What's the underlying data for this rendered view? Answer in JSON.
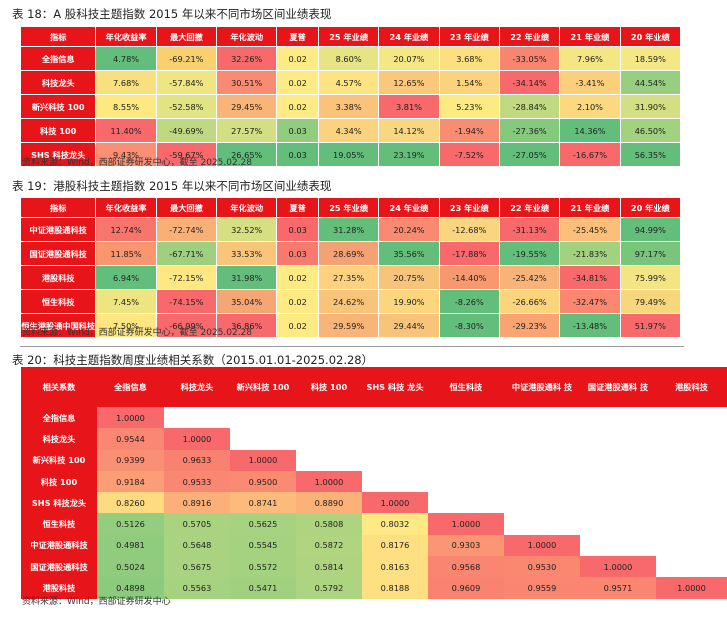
{
  "t18": {
    "title": "表 18：A 股科技主题指数 2015 年以来不同市场区间业绩表现",
    "headers": [
      "指标",
      "年化收益率",
      "最大回撤",
      "年化波动",
      "夏普",
      "25 年业绩",
      "24 年业绩",
      "23 年业绩",
      "22 年业绩",
      "21 年业绩",
      "20 年业绩"
    ],
    "rows": [
      {
        "label": "全指信息",
        "cells": [
          "4.78%",
          "-69.21%",
          "32.26%",
          "0.02",
          "8.60%",
          "20.07%",
          "3.68%",
          "-33.05%",
          "7.96%",
          "18.59%"
        ]
      },
      {
        "label": "科技龙头",
        "cells": [
          "7.68%",
          "-57.84%",
          "30.51%",
          "0.02",
          "4.57%",
          "12.65%",
          "1.54%",
          "-34.14%",
          "-3.41%",
          "44.54%"
        ]
      },
      {
        "label": "新兴科技 100",
        "cells": [
          "8.55%",
          "-52.58%",
          "29.45%",
          "0.02",
          "3.38%",
          "3.81%",
          "5.23%",
          "-28.84%",
          "2.10%",
          "31.90%"
        ]
      },
      {
        "label": "科技 100",
        "cells": [
          "11.40%",
          "-49.69%",
          "27.57%",
          "0.03",
          "4.34%",
          "14.12%",
          "-1.94%",
          "-27.36%",
          "14.36%",
          "46.50%"
        ]
      },
      {
        "label": "SHS 科技龙头",
        "cells": [
          "9.43%",
          "-59.67%",
          "26.65%",
          "0.03",
          "19.05%",
          "23.19%",
          "-7.52%",
          "-27.05%",
          "-16.67%",
          "56.35%"
        ]
      }
    ],
    "colors": [
      [
        "#63be7b",
        "#f8d16e",
        "#f8696b",
        "#ffeb84",
        "#e6e483",
        "#f4e784",
        "#fddf80",
        "#f98570",
        "#f4e783",
        "#f5e884"
      ],
      [
        "#f8df7f",
        "#eee583",
        "#f98b72",
        "#ffeb84",
        "#fde381",
        "#f9c87a",
        "#fcd37d",
        "#f8696b",
        "#fbcf7c",
        "#98ce7f"
      ],
      [
        "#fde980",
        "#e2e383",
        "#f9b578",
        "#ffeb84",
        "#fbc37a",
        "#f8696b",
        "#feea83",
        "#c0da81",
        "#fcd97f",
        "#d3df82"
      ],
      [
        "#f8696b",
        "#bed981",
        "#d2df82",
        "#92cc7e",
        "#fcd27e",
        "#f8d780",
        "#f98d72",
        "#85c97d",
        "#63be7b",
        "#a2d17f"
      ],
      [
        "#fa8f73",
        "#f8696b",
        "#63be7b",
        "#63be7b",
        "#63be7b",
        "#63be7b",
        "#f8696b",
        "#63be7b",
        "#f8696b",
        "#63be7b"
      ]
    ],
    "source": "资料来源：Wind，西部证券研发中心，截至 2025.02.28"
  },
  "t19": {
    "title": "表 19：港股科技主题指数 2015 年以来不同市场区间业绩表现",
    "headers": [
      "指标",
      "年化收益率",
      "最大回撤",
      "年化波动",
      "夏普",
      "25 年业绩",
      "24 年业绩",
      "23 年业绩",
      "22 年业绩",
      "21 年业绩",
      "20 年业绩"
    ],
    "rows": [
      {
        "label": "中证港股通科技",
        "cells": [
          "12.74%",
          "-72.74%",
          "32.52%",
          "0.03",
          "31.28%",
          "20.24%",
          "-12.68%",
          "-31.13%",
          "-25.45%",
          "94.99%"
        ]
      },
      {
        "label": "国证港股通科技",
        "cells": [
          "11.85%",
          "-67.71%",
          "33.53%",
          "0.03",
          "28.69%",
          "35.56%",
          "-17.88%",
          "-19.55%",
          "-21.83%",
          "97.17%"
        ]
      },
      {
        "label": "港股科技",
        "cells": [
          "6.94%",
          "-72.15%",
          "31.98%",
          "0.02",
          "27.35%",
          "20.75%",
          "-14.40%",
          "-25.42%",
          "-34.81%",
          "75.99%"
        ]
      },
      {
        "label": "恒生科技",
        "cells": [
          "7.45%",
          "-74.15%",
          "35.04%",
          "0.02",
          "24.62%",
          "19.90%",
          "-8.26%",
          "-26.66%",
          "-32.47%",
          "79.49%"
        ]
      },
      {
        "label": "恒生港股通中国科技",
        "cells": [
          "7.50%",
          "-66.99%",
          "36.86%",
          "0.02",
          "29.59%",
          "29.44%",
          "-8.30%",
          "-29.23%",
          "-13.48%",
          "51.97%"
        ]
      }
    ],
    "colors": [
      [
        "#f8756d",
        "#f9b077",
        "#d6e082",
        "#f8696b",
        "#63be7b",
        "#f88a71",
        "#f8d57e",
        "#f8696b",
        "#fbbf79",
        "#63be7b"
      ],
      [
        "#f89670",
        "#9fd07f",
        "#f8c57a",
        "#f87a6e",
        "#f4a173",
        "#63be7b",
        "#f8696b",
        "#63be7b",
        "#a3d17f",
        "#79c57c"
      ],
      [
        "#63be7b",
        "#ffe883",
        "#63be7b",
        "#ffeb84",
        "#fdd17d",
        "#f8c47a",
        "#f8986f",
        "#f8b478",
        "#f8696b",
        "#f3e583"
      ],
      [
        "#ece582",
        "#f8696b",
        "#f5a675",
        "#ffeb84",
        "#f8c47a",
        "#fbd67f",
        "#63be7b",
        "#fcd47c",
        "#fa876f",
        "#f8d67c"
      ],
      [
        "#fee683",
        "#f8696b",
        "#f8696b",
        "#ffeb84",
        "#f9b577",
        "#f8c47a",
        "#63be7b",
        "#faa474",
        "#63be7b",
        "#f8696b"
      ]
    ],
    "source": "资料来源：Wind，西部证券研发中心，截至 2025.02.28"
  },
  "t20": {
    "title": "表 20：科技主题指数周度业绩相关系数（2015.01.01-2025.02.28）",
    "headers": [
      "相关系数",
      "全指信息",
      "科技龙头",
      "新兴科技 100",
      "科技 100",
      "SHS 科技 龙头",
      "恒生科技",
      "中证港股通科 技",
      "国证港股通科 技",
      "港股科技"
    ],
    "rows": [
      {
        "label": "全指信息",
        "cells": [
          "1.0000"
        ]
      },
      {
        "label": "科技龙头",
        "cells": [
          "0.9544",
          "1.0000"
        ]
      },
      {
        "label": "新兴科技 100",
        "cells": [
          "0.9399",
          "0.9633",
          "1.0000"
        ]
      },
      {
        "label": "科技 100",
        "cells": [
          "0.9184",
          "0.9533",
          "0.9500",
          "1.0000"
        ]
      },
      {
        "label": "SHS 科技龙头",
        "cells": [
          "0.8260",
          "0.8916",
          "0.8741",
          "0.8890",
          "1.0000"
        ]
      },
      {
        "label": "恒生科技",
        "cells": [
          "0.5126",
          "0.5705",
          "0.5625",
          "0.5808",
          "0.8032",
          "1.0000"
        ]
      },
      {
        "label": "中证港股通科技",
        "cells": [
          "0.4981",
          "0.5648",
          "0.5545",
          "0.5872",
          "0.8176",
          "0.9303",
          "1.0000"
        ]
      },
      {
        "label": "国证港股通科技",
        "cells": [
          "0.5024",
          "0.5675",
          "0.5572",
          "0.5814",
          "0.8163",
          "0.9568",
          "0.9530",
          "1.0000"
        ]
      },
      {
        "label": "港股科技",
        "cells": [
          "0.4898",
          "0.5563",
          "0.5471",
          "0.5792",
          "0.8188",
          "0.9609",
          "0.9559",
          "0.9571",
          "1.0000"
        ]
      }
    ],
    "colors": {
      "hi": "#f8696b",
      "mid": "#ffeb84",
      "lo": "#8ccb7e",
      "blank": "#ffffff"
    },
    "source": "资料来源：Wind，西部证券研发中心"
  }
}
